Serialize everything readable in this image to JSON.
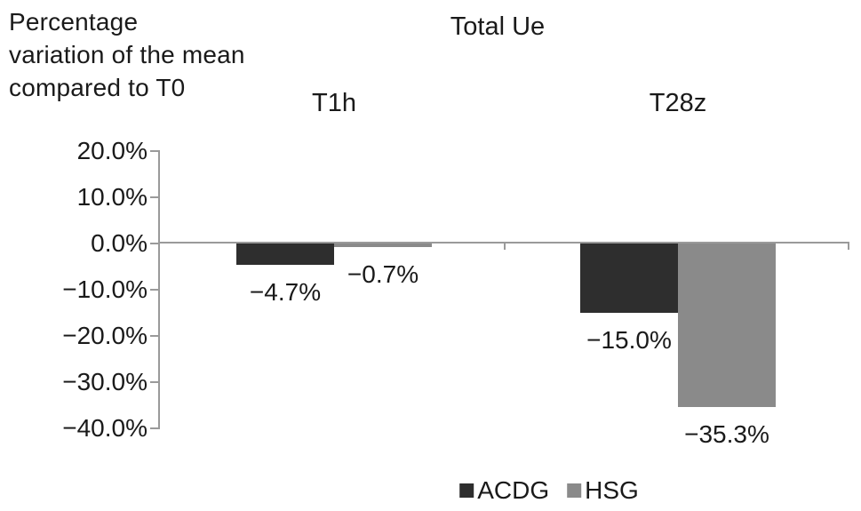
{
  "header": {
    "y_axis_caption": "Percentage\nvariation of the mean\ncompared to T0"
  },
  "chart_data": {
    "type": "bar",
    "title": "Total Ue",
    "ylabel": "Percentage variation of the mean compared to T0",
    "xlabel": "",
    "categories": [
      "T1h",
      "T28z"
    ],
    "series": [
      {
        "name": "ACDG",
        "color": "#2e2e2e",
        "values": [
          -4.7,
          -15.0
        ],
        "labels": [
          "−4.7%",
          "−15.0%"
        ]
      },
      {
        "name": "HSG",
        "color": "#8a8a8a",
        "values": [
          -0.7,
          -35.3
        ],
        "labels": [
          "−0.7%",
          "−35.3%"
        ]
      }
    ],
    "y_ticks": [
      {
        "value": 20,
        "label": "20.0%"
      },
      {
        "value": 10,
        "label": "10.0%"
      },
      {
        "value": 0,
        "label": "0.0%"
      },
      {
        "value": -10,
        "label": "−10.0%"
      },
      {
        "value": -20,
        "label": "−20.0%"
      },
      {
        "value": -30,
        "label": "−30.0%"
      },
      {
        "value": -40,
        "label": "−40.0%"
      }
    ],
    "ylim": [
      -40,
      20
    ],
    "grid": false,
    "legend_position": "bottom",
    "axis_color": "#9a9a9a",
    "text_color": "#1a1a1a"
  }
}
